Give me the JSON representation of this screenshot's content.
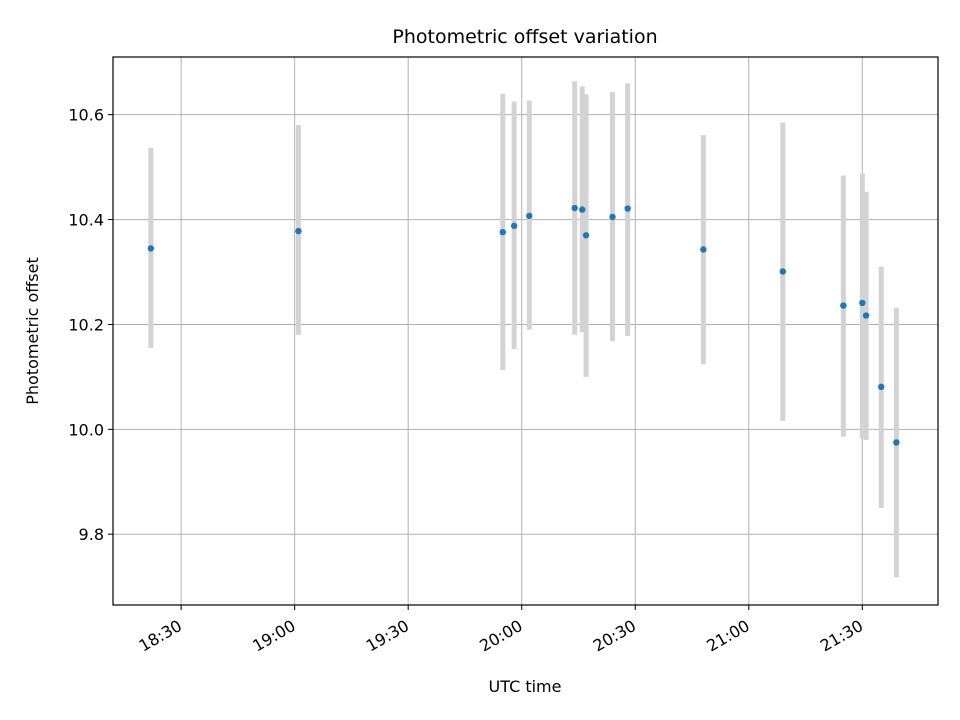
{
  "chart_data": {
    "type": "scatter",
    "title": "Photometric offset variation",
    "xlabel": "UTC time",
    "ylabel": "Photometric offset",
    "x_is_time": true,
    "xlim": [
      "18:12",
      "21:50"
    ],
    "ylim": [
      9.665,
      10.71
    ],
    "x_ticks": [
      "18:30",
      "19:00",
      "19:30",
      "20:00",
      "20:30",
      "21:00",
      "21:30"
    ],
    "y_ticks": [
      9.8,
      10.0,
      10.2,
      10.4,
      10.6
    ],
    "y_tick_labels": [
      "9.8",
      "10.0",
      "10.2",
      "10.4",
      "10.6"
    ],
    "grid": true,
    "colors": {
      "point": "#1f77b4",
      "errorbar": "#d3d3d3",
      "grid": "#b0b0b0"
    },
    "points": [
      {
        "x": "18:22",
        "y": 10.345,
        "ylow": 10.155,
        "yhigh": 10.537
      },
      {
        "x": "19:01",
        "y": 10.378,
        "ylow": 10.18,
        "yhigh": 10.58
      },
      {
        "x": "19:55",
        "y": 10.376,
        "ylow": 10.113,
        "yhigh": 10.64
      },
      {
        "x": "19:58",
        "y": 10.388,
        "ylow": 10.153,
        "yhigh": 10.625
      },
      {
        "x": "20:02",
        "y": 10.407,
        "ylow": 10.19,
        "yhigh": 10.627
      },
      {
        "x": "20:14",
        "y": 10.422,
        "ylow": 10.18,
        "yhigh": 10.664
      },
      {
        "x": "20:16",
        "y": 10.419,
        "ylow": 10.185,
        "yhigh": 10.654
      },
      {
        "x": "20:17",
        "y": 10.37,
        "ylow": 10.1,
        "yhigh": 10.639
      },
      {
        "x": "20:24",
        "y": 10.405,
        "ylow": 10.168,
        "yhigh": 10.643
      },
      {
        "x": "20:28",
        "y": 10.421,
        "ylow": 10.178,
        "yhigh": 10.66
      },
      {
        "x": "20:48",
        "y": 10.343,
        "ylow": 10.124,
        "yhigh": 10.561
      },
      {
        "x": "21:09",
        "y": 10.301,
        "ylow": 10.016,
        "yhigh": 10.585
      },
      {
        "x": "21:25",
        "y": 10.236,
        "ylow": 9.986,
        "yhigh": 10.484
      },
      {
        "x": "21:30",
        "y": 10.241,
        "ylow": 9.983,
        "yhigh": 10.488
      },
      {
        "x": "21:31",
        "y": 10.217,
        "ylow": 9.98,
        "yhigh": 10.453
      },
      {
        "x": "21:35",
        "y": 10.081,
        "ylow": 9.85,
        "yhigh": 10.31
      },
      {
        "x": "21:39",
        "y": 9.975,
        "ylow": 9.718,
        "yhigh": 10.232
      }
    ]
  }
}
